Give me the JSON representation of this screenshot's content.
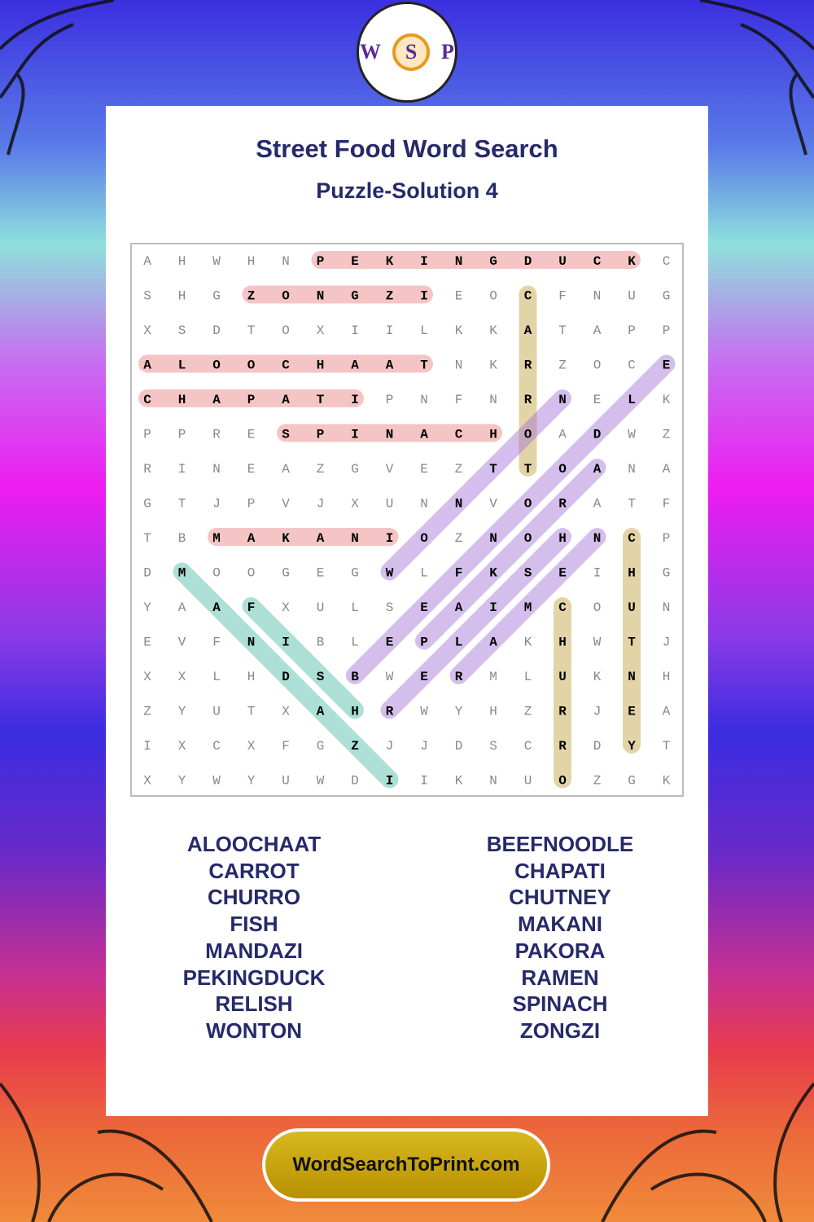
{
  "header": {
    "title": "Street Food Word Search",
    "subtitle": "Puzzle-Solution 4"
  },
  "grid": {
    "rows": [
      [
        "A",
        "H",
        "W",
        "H",
        "N",
        "P",
        "E",
        "K",
        "I",
        "N",
        "G",
        "D",
        "U",
        "C",
        "K",
        "C"
      ],
      [
        "S",
        "H",
        "G",
        "Z",
        "O",
        "N",
        "G",
        "Z",
        "I",
        "E",
        "O",
        "C",
        "F",
        "N",
        "U",
        "G"
      ],
      [
        "X",
        "S",
        "D",
        "T",
        "O",
        "X",
        "I",
        "I",
        "L",
        "K",
        "K",
        "A",
        "T",
        "A",
        "P",
        "P"
      ],
      [
        "A",
        "L",
        "O",
        "O",
        "C",
        "H",
        "A",
        "A",
        "T",
        "N",
        "K",
        "R",
        "Z",
        "O",
        "C",
        "E"
      ],
      [
        "C",
        "H",
        "A",
        "P",
        "A",
        "T",
        "I",
        "P",
        "N",
        "F",
        "N",
        "R",
        "N",
        "E",
        "L",
        "K"
      ],
      [
        "P",
        "P",
        "R",
        "E",
        "S",
        "P",
        "I",
        "N",
        "A",
        "C",
        "H",
        "O",
        "A",
        "D",
        "W",
        "Z"
      ],
      [
        "R",
        "I",
        "N",
        "E",
        "A",
        "Z",
        "G",
        "V",
        "E",
        "Z",
        "T",
        "T",
        "O",
        "A",
        "N",
        "A"
      ],
      [
        "G",
        "T",
        "J",
        "P",
        "V",
        "J",
        "X",
        "U",
        "N",
        "N",
        "V",
        "O",
        "R",
        "A",
        "T",
        "F"
      ],
      [
        "T",
        "B",
        "M",
        "A",
        "K",
        "A",
        "N",
        "I",
        "O",
        "Z",
        "N",
        "O",
        "H",
        "N",
        "C",
        "P"
      ],
      [
        "D",
        "M",
        "O",
        "O",
        "G",
        "E",
        "G",
        "W",
        "L",
        "F",
        "K",
        "S",
        "E",
        "I",
        "H",
        "G"
      ],
      [
        "Y",
        "A",
        "A",
        "F",
        "X",
        "U",
        "L",
        "S",
        "E",
        "A",
        "I",
        "M",
        "C",
        "O",
        "U",
        "N"
      ],
      [
        "E",
        "V",
        "F",
        "N",
        "I",
        "B",
        "L",
        "E",
        "P",
        "L",
        "A",
        "K",
        "H",
        "W",
        "T",
        "J"
      ],
      [
        "X",
        "X",
        "L",
        "H",
        "D",
        "S",
        "B",
        "W",
        "E",
        "R",
        "M",
        "L",
        "U",
        "K",
        "N",
        "H"
      ],
      [
        "Z",
        "Y",
        "U",
        "T",
        "X",
        "A",
        "H",
        "R",
        "W",
        "Y",
        "H",
        "Z",
        "R",
        "J",
        "E",
        "A"
      ],
      [
        "I",
        "X",
        "C",
        "X",
        "F",
        "G",
        "Z",
        "J",
        "J",
        "D",
        "S",
        "C",
        "R",
        "D",
        "Y",
        "T"
      ],
      [
        "X",
        "Y",
        "W",
        "Y",
        "U",
        "W",
        "D",
        "I",
        "I",
        "K",
        "N",
        "U",
        "O",
        "Z",
        "G",
        "K"
      ]
    ]
  },
  "words": {
    "left": [
      "ALOOCHAAT",
      "CARROT",
      "CHURRO",
      "FISH",
      "MANDAZI",
      "PEKINGDUCK",
      "RELISH",
      "WONTON"
    ],
    "right": [
      "BEEFNOODLE",
      "CHAPATI",
      "CHUTNEY",
      "MAKANI",
      "PAKORA",
      "RAMEN",
      "SPINACH",
      "ZONGZI"
    ]
  },
  "footer": {
    "site": "WordSearchToPrint.com"
  }
}
